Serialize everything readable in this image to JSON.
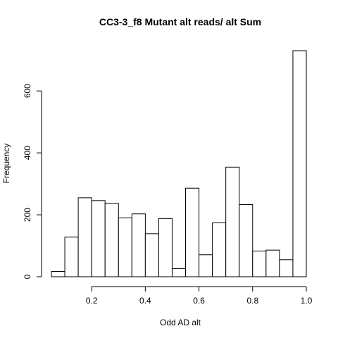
{
  "chart_data": {
    "type": "bar",
    "title": "CC3-3_f8 Mutant alt reads/ alt Sum",
    "xlabel": "Odd AD alt",
    "ylabel": "Frequency",
    "bin_edges": [
      0.05,
      0.1,
      0.15,
      0.2,
      0.25,
      0.3,
      0.35,
      0.4,
      0.45,
      0.5,
      0.55,
      0.6,
      0.65,
      0.7,
      0.75,
      0.8,
      0.85,
      0.9,
      0.95,
      1.0
    ],
    "values": [
      17,
      128,
      255,
      246,
      237,
      190,
      203,
      139,
      188,
      26,
      286,
      71,
      174,
      354,
      233,
      83,
      86,
      55,
      730
    ],
    "xlim": [
      0.05,
      1.0
    ],
    "ylim": [
      0,
      730
    ],
    "x_ticks": [
      0.2,
      0.4,
      0.6,
      0.8,
      1.0
    ],
    "x_tick_labels": [
      "0.2",
      "0.4",
      "0.6",
      "0.8",
      "1.0"
    ],
    "y_ticks": [
      0,
      200,
      400,
      600
    ],
    "y_tick_labels": [
      "0",
      "200",
      "400",
      "600"
    ],
    "grid": false,
    "colors": {
      "bar_fill": "#ffffff",
      "bar_stroke": "#000000"
    }
  }
}
